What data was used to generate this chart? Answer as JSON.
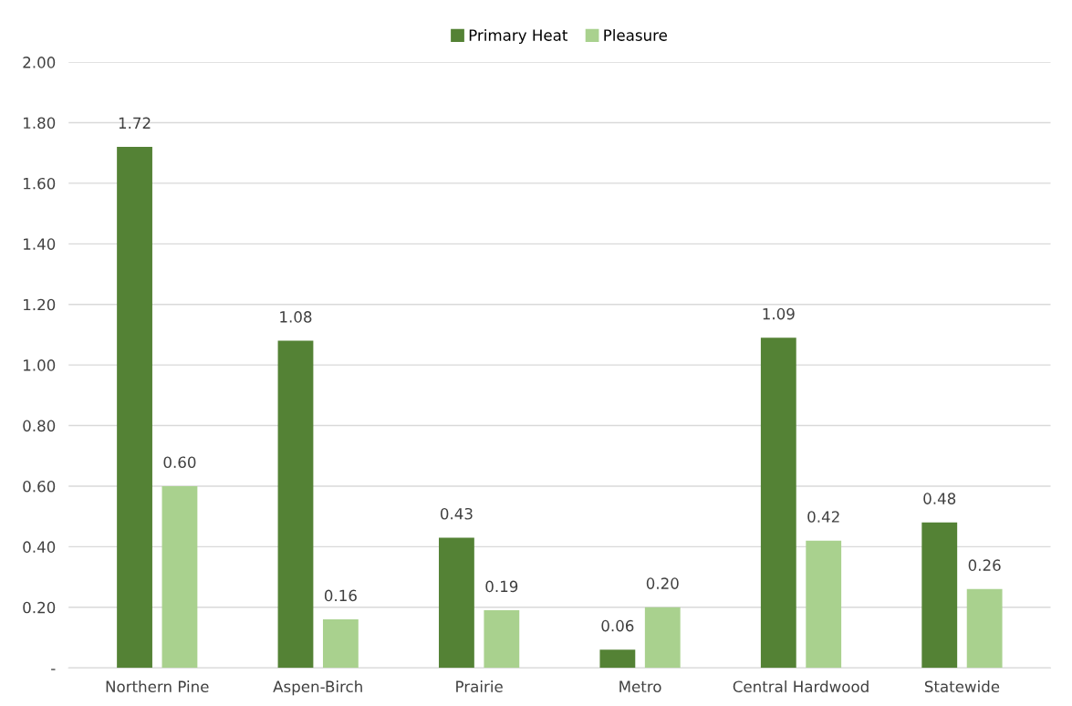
{
  "chart_data": {
    "type": "bar",
    "categories": [
      "Northern Pine",
      "Aspen-Birch",
      "Prairie",
      "Metro",
      "Central Hardwood",
      "Statewide"
    ],
    "series": [
      {
        "name": "Primary Heat",
        "color": "#548235",
        "values": [
          1.72,
          1.08,
          0.43,
          0.06,
          1.09,
          0.48
        ],
        "value_labels": [
          "1.72",
          "1.08",
          "0.43",
          "0.06",
          "1.09",
          "0.48"
        ]
      },
      {
        "name": "Pleasure",
        "color": "#a9d18e",
        "values": [
          0.6,
          0.16,
          0.19,
          0.2,
          0.42,
          0.26
        ],
        "value_labels": [
          "0.60",
          "0.16",
          "0.19",
          "0.20",
          "0.42",
          "0.26"
        ]
      }
    ],
    "ylim": [
      0,
      2.0
    ],
    "yticks": [
      {
        "value": 0,
        "label": "-"
      },
      {
        "value": 0.2,
        "label": "0.20"
      },
      {
        "value": 0.4,
        "label": "0.40"
      },
      {
        "value": 0.6,
        "label": "0.60"
      },
      {
        "value": 0.8,
        "label": "0.80"
      },
      {
        "value": 1.0,
        "label": "1.00"
      },
      {
        "value": 1.2,
        "label": "1.20"
      },
      {
        "value": 1.4,
        "label": "1.40"
      },
      {
        "value": 1.6,
        "label": "1.60"
      },
      {
        "value": 1.8,
        "label": "1.80"
      },
      {
        "value": 2.0,
        "label": "2.00"
      }
    ],
    "grid": "y",
    "legend": "top"
  }
}
